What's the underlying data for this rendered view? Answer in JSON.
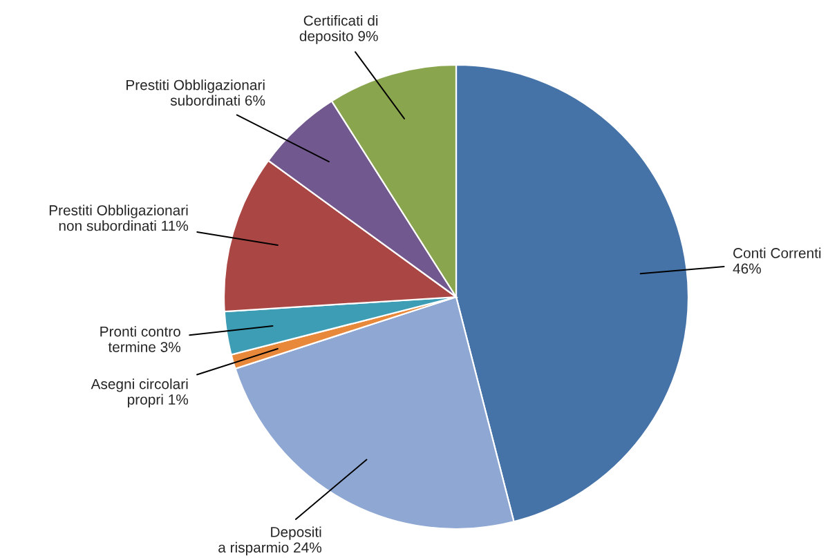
{
  "chart_data": {
    "type": "pie",
    "categories": [
      "Conti Correnti",
      "Depositi\na risparmio",
      "Asegni circolari\npropri",
      "Pronti contro\ntermine",
      "Prestiti Obbligazionari\nnon subordinati",
      "Prestiti Obbligazionari\nsubordinati",
      "Certificati di\ndeposito"
    ],
    "values": [
      46,
      24,
      1,
      3,
      11,
      6,
      9
    ],
    "value_labels": [
      "46%",
      "24%",
      "1%",
      "3%",
      "11%",
      "6%",
      "9%"
    ],
    "colors": [
      "#4572a7",
      "#8ea7d3",
      "#e8883a",
      "#3d9db5",
      "#aa4643",
      "#71588f",
      "#89a54e"
    ],
    "legend": false
  }
}
